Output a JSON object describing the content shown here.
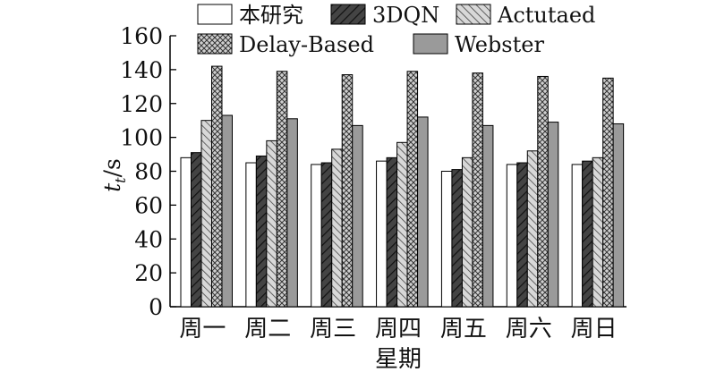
{
  "chart_data": {
    "type": "bar",
    "categories": [
      "周一",
      "周二",
      "周三",
      "周四",
      "周五",
      "周六",
      "周日"
    ],
    "series": [
      {
        "name": "本研究",
        "values": [
          88,
          85,
          84,
          86,
          80,
          84,
          84
        ],
        "color": "#ffffff",
        "pattern": "none"
      },
      {
        "name": "3DQN",
        "values": [
          91,
          89,
          85,
          88,
          81,
          85,
          86
        ],
        "color": "#3c3c3c",
        "pattern": "diag-forward"
      },
      {
        "name": "Actutaed",
        "values": [
          110,
          98,
          93,
          97,
          88,
          92,
          88
        ],
        "color": "#c8c8c8",
        "pattern": "diag-back"
      },
      {
        "name": "Delay-Based",
        "values": [
          142,
          139,
          137,
          139,
          138,
          136,
          135
        ],
        "color": "#c8c8c8",
        "pattern": "crosshatch"
      },
      {
        "name": "Webster",
        "values": [
          113,
          111,
          107,
          112,
          107,
          109,
          108
        ],
        "color": "#9a9a9a",
        "pattern": "solid"
      }
    ],
    "ylim": [
      0,
      160
    ],
    "yticks": [
      0,
      20,
      40,
      60,
      80,
      100,
      120,
      140,
      160
    ],
    "ylabel": {
      "main": "t",
      "sub": "t",
      "suffix": "/s"
    },
    "xlabel": "星期",
    "legend_position": "top",
    "grid": false
  }
}
